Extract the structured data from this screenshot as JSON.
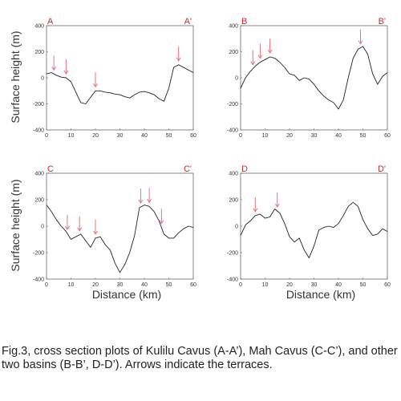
{
  "figure": {
    "ylabel": "Surface height (m)",
    "xlabel": "Distance (km)",
    "caption": "Fig.3, cross section plots of Kulilu Cavus (A-A’), Mah Cavus (C-C’), and other two basins (B-B’, D-D’). Arrows indicate the terraces."
  },
  "colors": {
    "line": "#222222",
    "arrow": "#e8737b",
    "corner_label": "#d62728",
    "axis": "#666666"
  },
  "chart_data": [
    {
      "type": "line",
      "label_left": "A",
      "label_right": "A'",
      "xlim": [
        0,
        60
      ],
      "ylim": [
        -400,
        400
      ],
      "xticks": [
        0,
        10,
        20,
        30,
        40,
        50,
        60
      ],
      "yticks": [
        400,
        200,
        0,
        -200,
        -400
      ],
      "x": [
        0,
        2,
        4,
        6,
        8,
        10,
        12,
        14,
        16,
        18,
        20,
        22,
        24,
        26,
        28,
        30,
        32,
        34,
        36,
        38,
        40,
        42,
        44,
        46,
        48,
        50,
        52,
        54,
        56,
        58,
        60
      ],
      "y": [
        30,
        40,
        20,
        5,
        0,
        -30,
        -110,
        -190,
        -200,
        -150,
        -100,
        -100,
        -110,
        -115,
        -125,
        -130,
        -145,
        -155,
        -130,
        -110,
        -105,
        -115,
        -130,
        -160,
        -180,
        -80,
        80,
        100,
        80,
        60,
        40
      ],
      "arrows_x": [
        3,
        8,
        20,
        54
      ]
    },
    {
      "type": "line",
      "label_left": "B",
      "label_right": "B'",
      "xlim": [
        0,
        60
      ],
      "ylim": [
        -400,
        400
      ],
      "xticks": [
        0,
        10,
        20,
        30,
        40,
        50,
        60
      ],
      "yticks": [
        400,
        200,
        0,
        -200,
        -400
      ],
      "x": [
        0,
        2,
        4,
        6,
        8,
        10,
        12,
        14,
        16,
        18,
        20,
        22,
        24,
        26,
        28,
        30,
        32,
        34,
        36,
        38,
        40,
        42,
        44,
        46,
        48,
        50,
        52,
        54,
        56,
        58,
        60
      ],
      "y": [
        -80,
        0,
        50,
        90,
        120,
        140,
        160,
        150,
        120,
        80,
        30,
        20,
        -20,
        0,
        -10,
        -50,
        -100,
        -140,
        -170,
        -190,
        -240,
        -170,
        0,
        150,
        220,
        240,
        180,
        30,
        -50,
        10,
        40
      ],
      "arrows_x": [
        5,
        8,
        12,
        49
      ]
    },
    {
      "type": "line",
      "label_left": "C",
      "label_right": "C'",
      "xlim": [
        0,
        60
      ],
      "ylim": [
        -400,
        400
      ],
      "xticks": [
        0,
        10,
        20,
        30,
        40,
        50,
        60
      ],
      "yticks": [
        400,
        200,
        0,
        -200,
        -400
      ],
      "x": [
        0,
        2,
        4,
        6,
        8,
        10,
        12,
        14,
        16,
        18,
        20,
        22,
        24,
        26,
        28,
        30,
        32,
        34,
        36,
        38,
        40,
        42,
        44,
        46,
        48,
        50,
        52,
        54,
        56,
        58,
        60
      ],
      "y": [
        160,
        110,
        50,
        0,
        -40,
        -100,
        -80,
        -60,
        -110,
        -160,
        -90,
        -80,
        -140,
        -180,
        -280,
        -350,
        -290,
        -200,
        -70,
        140,
        160,
        150,
        110,
        40,
        -60,
        -90,
        -90,
        -50,
        -20,
        0,
        -10
      ],
      "arrows_x": [
        8.5,
        13.5,
        20,
        38.5,
        42,
        47
      ]
    },
    {
      "type": "line",
      "label_left": "D",
      "label_right": "D'",
      "xlim": [
        0,
        60
      ],
      "ylim": [
        -400,
        400
      ],
      "xticks": [
        0,
        10,
        20,
        30,
        40,
        50,
        60
      ],
      "yticks": [
        400,
        200,
        0,
        -200,
        -400
      ],
      "x": [
        0,
        2,
        4,
        6,
        8,
        10,
        12,
        14,
        16,
        18,
        20,
        22,
        24,
        26,
        28,
        30,
        32,
        34,
        36,
        38,
        40,
        42,
        44,
        46,
        48,
        50,
        52,
        54,
        56,
        58,
        60
      ],
      "y": [
        -70,
        10,
        40,
        80,
        90,
        60,
        70,
        130,
        100,
        20,
        -80,
        -120,
        -90,
        -180,
        -240,
        -150,
        -30,
        -10,
        0,
        -10,
        20,
        80,
        150,
        180,
        150,
        50,
        -20,
        -70,
        -60,
        -20,
        -40
      ],
      "arrows_x": [
        6,
        15
      ]
    }
  ]
}
